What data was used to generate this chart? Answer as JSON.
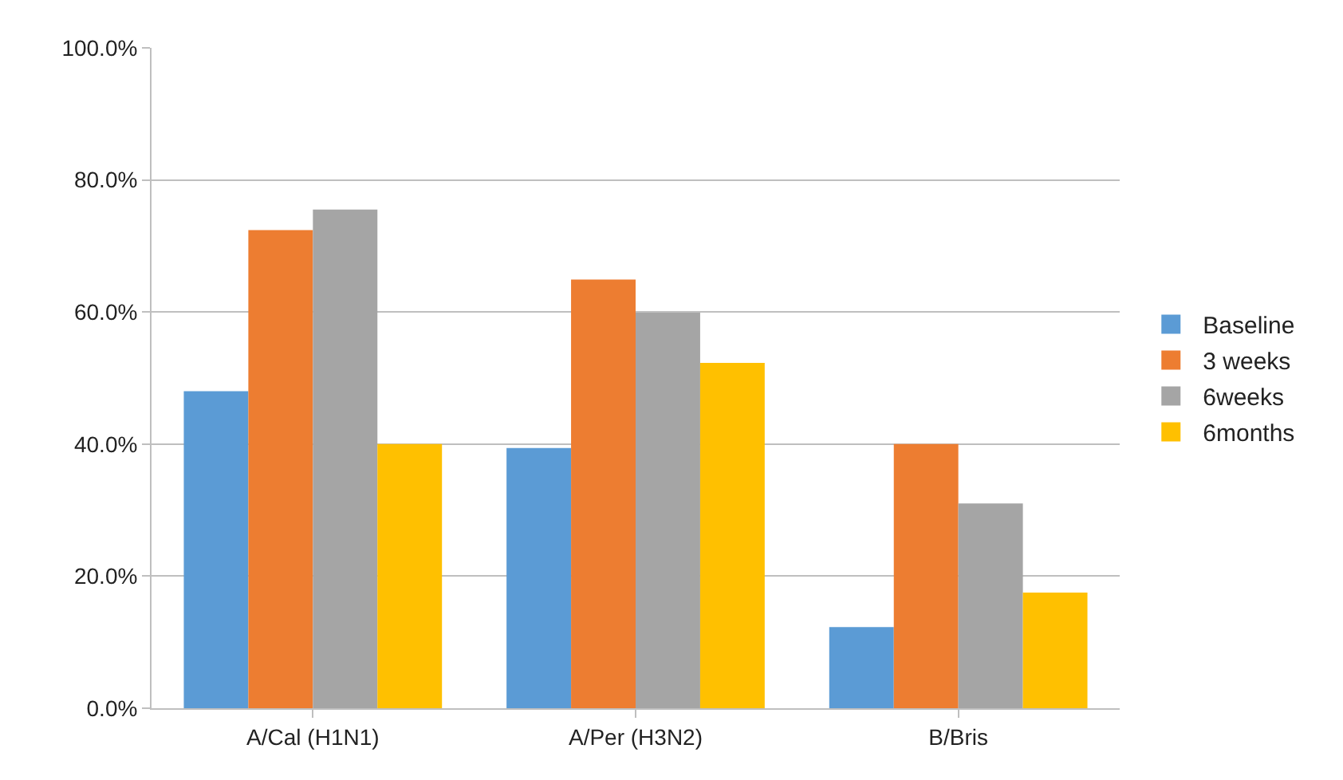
{
  "chart_data": {
    "type": "bar",
    "categories": [
      "A/Cal (H1N1)",
      "A/Per (H3N2)",
      "B/Bris"
    ],
    "series": [
      {
        "name": "Baseline",
        "color": "#5b9bd5",
        "values": [
          48,
          39.4,
          12.3
        ]
      },
      {
        "name": "3 weeks",
        "color": "#ed7d31",
        "values": [
          72.4,
          64.9,
          40
        ]
      },
      {
        "name": "6weeks",
        "color": "#a5a5a5",
        "values": [
          75.5,
          59.9,
          31
        ]
      },
      {
        "name": "6months",
        "color": "#ffc000",
        "values": [
          40,
          52.3,
          17.5
        ]
      }
    ],
    "ylim": [
      0,
      100
    ],
    "yticks": [
      {
        "value": 0,
        "label": "0.0%"
      },
      {
        "value": 20,
        "label": "20.0%"
      },
      {
        "value": 40,
        "label": "40.0%"
      },
      {
        "value": 60,
        "label": "60.0%"
      },
      {
        "value": 80,
        "label": "80.0%"
      },
      {
        "value": 100,
        "label": "100.0%"
      }
    ],
    "grid": "y",
    "legend": "right"
  }
}
